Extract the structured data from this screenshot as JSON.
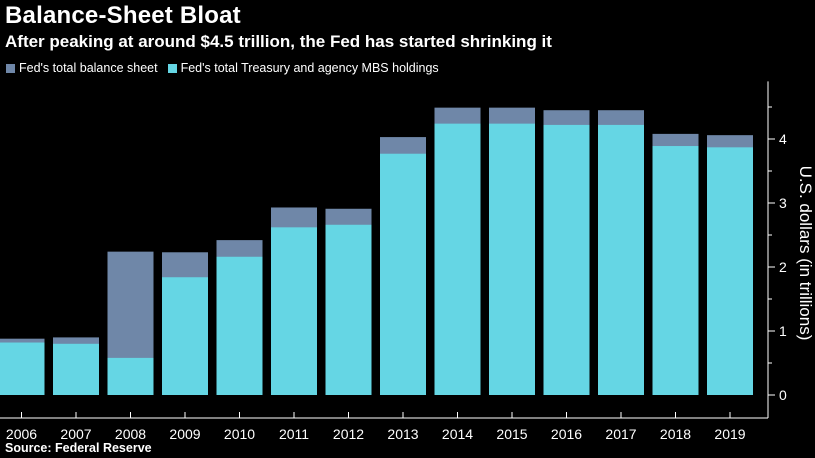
{
  "header": {
    "title": "Balance-Sheet Bloat",
    "subtitle": "After peaking at around $4.5 trillion, the Fed has started shrinking it"
  },
  "footer": {
    "source": "Source: Federal Reserve"
  },
  "colors": {
    "background": "#000000",
    "total": "#6f87a8",
    "holdings": "#65d6e4",
    "axis": "#ffffff"
  },
  "chart_data": {
    "type": "bar",
    "stacking": "overlay",
    "title": "Balance-Sheet Bloat",
    "subtitle": "After peaking at around $4.5 trillion, the Fed has started shrinking it",
    "xlabel": "",
    "ylabel": "U.S. dollars (in trillions)",
    "y_axis_side": "right",
    "ylim": [
      0,
      4.9
    ],
    "yticks": [
      0,
      1,
      2,
      3,
      4
    ],
    "grid": false,
    "legend_position": "top-left",
    "categories": [
      "2006",
      "2007",
      "2008",
      "2009",
      "2010",
      "2011",
      "2012",
      "2013",
      "2014",
      "2015",
      "2016",
      "2017",
      "2018",
      "2019"
    ],
    "series": [
      {
        "name": "Fed's total balance sheet",
        "color": "#6f87a8",
        "values": [
          0.88,
          0.9,
          2.24,
          2.23,
          2.42,
          2.93,
          2.91,
          4.03,
          4.49,
          4.49,
          4.45,
          4.45,
          4.08,
          4.06
        ]
      },
      {
        "name": "Fed's total Treasury and agency MBS holdings",
        "color": "#65d6e4",
        "values": [
          0.82,
          0.8,
          0.58,
          1.84,
          2.16,
          2.62,
          2.66,
          3.77,
          4.24,
          4.24,
          4.22,
          4.22,
          3.89,
          3.87
        ]
      }
    ]
  }
}
